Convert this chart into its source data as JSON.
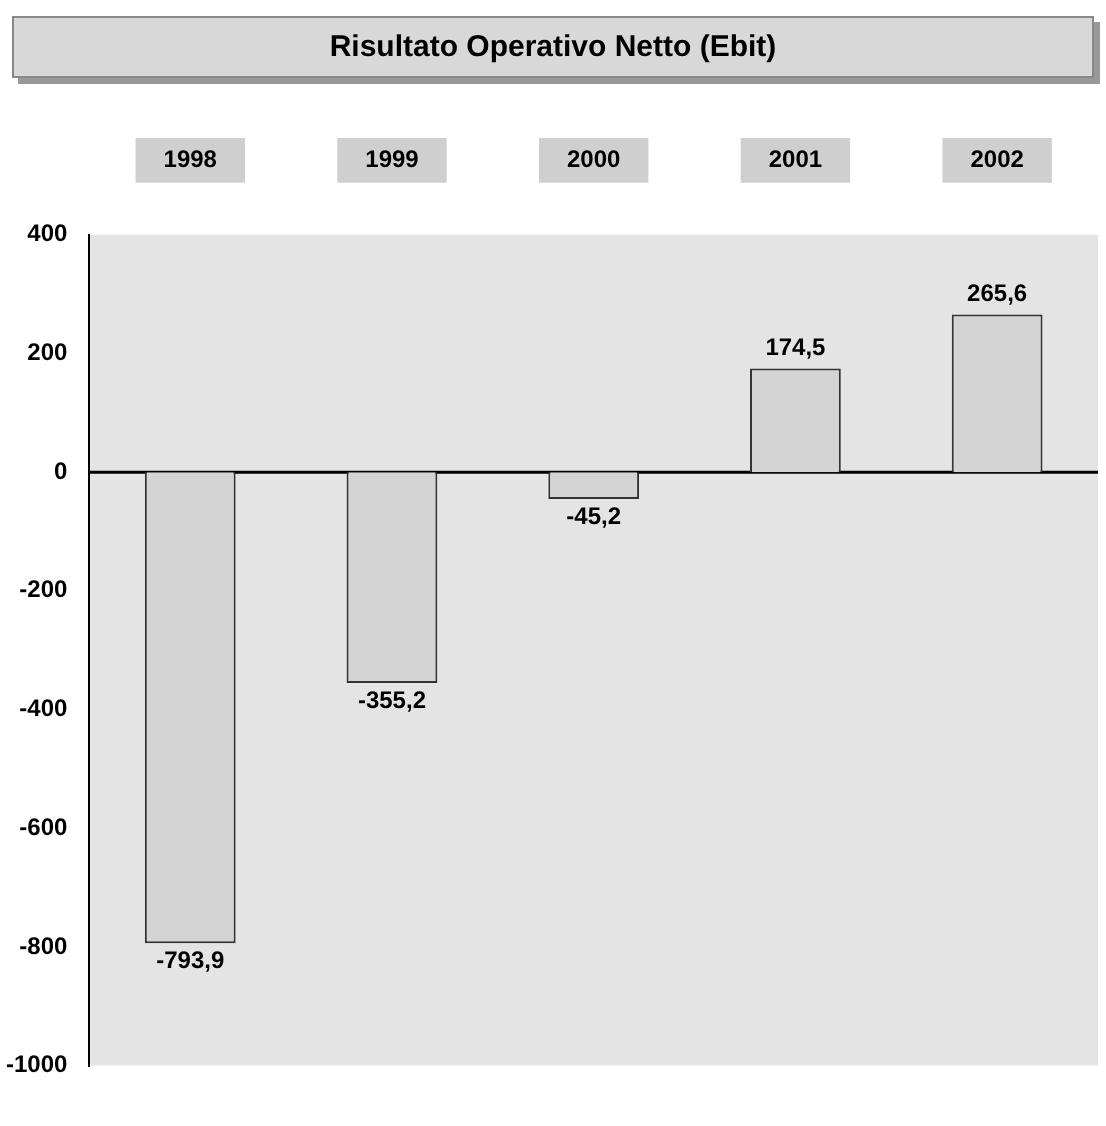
{
  "chart_data": {
    "type": "bar",
    "title": "Risultato Operativo Netto (Ebit)",
    "categories": [
      "1998",
      "1999",
      "2000",
      "2001",
      "2002"
    ],
    "values": [
      -793.9,
      -355.2,
      -45.2,
      174.5,
      265.6
    ],
    "value_labels": [
      "-793,9",
      "-355,2",
      "-45,2",
      "174,5",
      "265,6"
    ],
    "color": "#d4d4d4",
    "ylim": [
      -1000,
      400
    ],
    "yticks": [
      -1000,
      -800,
      -600,
      -400,
      -200,
      0,
      200,
      400
    ],
    "legend": false
  }
}
